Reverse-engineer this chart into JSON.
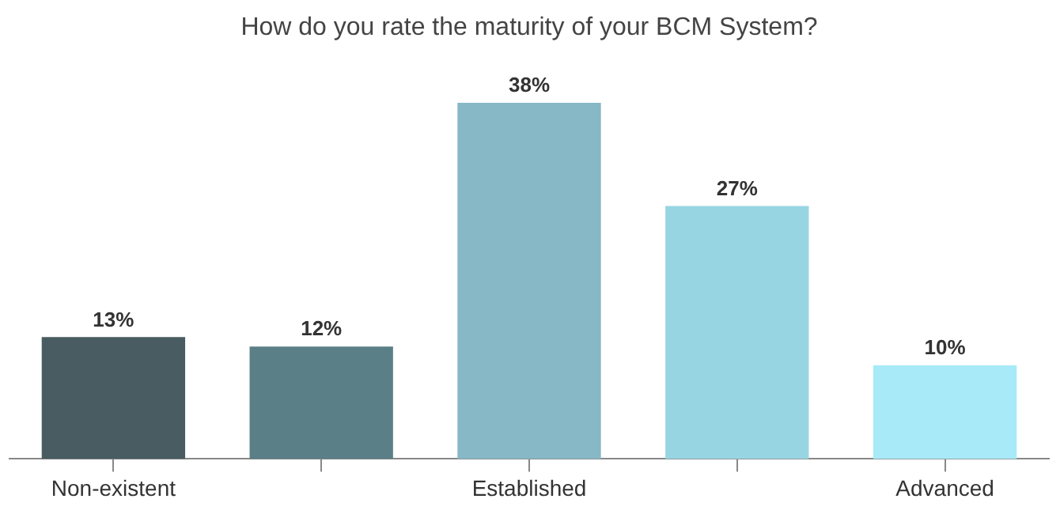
{
  "chart_data": {
    "type": "bar",
    "title": "How do you rate the maturity of your BCM System?",
    "categories": [
      "Non-existent",
      null,
      "Established",
      null,
      "Advanced"
    ],
    "values": [
      13,
      12,
      38,
      27,
      10
    ],
    "value_labels": [
      "13%",
      "12%",
      "38%",
      "27%",
      "10%"
    ],
    "colors": [
      "#485c62",
      "#5a7f87",
      "#86b8c6",
      "#98d5e2",
      "#a8eaf8"
    ],
    "grid": false,
    "legend": false
  }
}
